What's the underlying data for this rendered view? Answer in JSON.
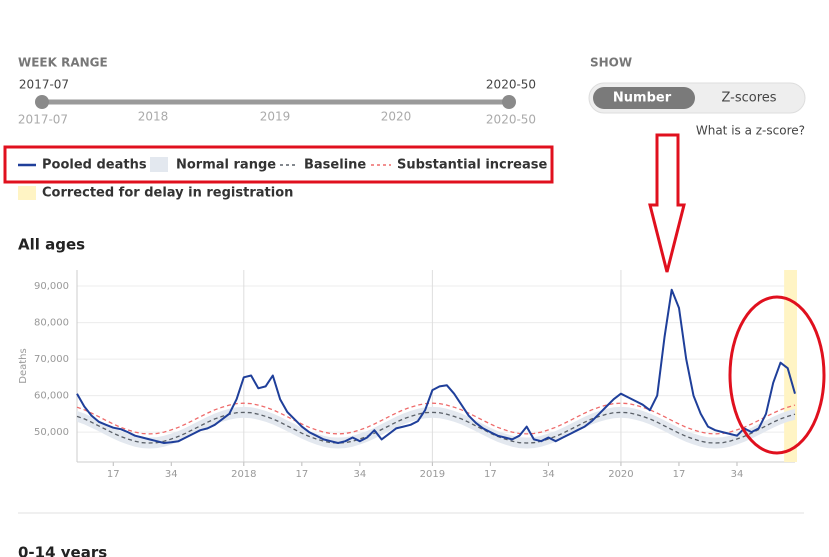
{
  "week_range": {
    "label": "WEEK RANGE",
    "start": "2017-07",
    "end": "2020-50",
    "ticks": [
      "2017-07",
      "2018",
      "2019",
      "2020",
      "2020-50"
    ]
  },
  "show": {
    "label": "SHOW",
    "options": [
      "Number",
      "Z-scores"
    ],
    "help_link": "What is a z-score?"
  },
  "section_title": "All ages",
  "next_section_title": "0-14 years",
  "chart_data": {
    "type": "line",
    "y_label": "Deaths",
    "corrected_label": "Corrected for delay in registration",
    "corrected_color": "#fff4c4",
    "ylim": [
      41800,
      94400
    ],
    "yticks": [
      {
        "value": 50000,
        "label": "50,000"
      },
      {
        "value": 60000,
        "label": "60,000"
      },
      {
        "value": 70000,
        "label": "70,000"
      },
      {
        "value": 80000,
        "label": "80,000"
      },
      {
        "value": 90000,
        "label": "90,000"
      }
    ],
    "grid": true,
    "categories": [
      null,
      null,
      null,
      null,
      null,
      "17",
      null,
      null,
      null,
      null,
      null,
      null,
      null,
      "34",
      null,
      null,
      null,
      null,
      null,
      null,
      null,
      null,
      null,
      "2018",
      null,
      null,
      null,
      null,
      null,
      null,
      null,
      "17",
      null,
      null,
      null,
      null,
      null,
      null,
      null,
      "34",
      null,
      null,
      null,
      null,
      null,
      null,
      null,
      null,
      null,
      "2019",
      null,
      null,
      null,
      null,
      null,
      null,
      null,
      "17",
      null,
      null,
      null,
      null,
      null,
      null,
      null,
      "34",
      null,
      null,
      null,
      null,
      null,
      null,
      null,
      null,
      null,
      "2020",
      null,
      null,
      null,
      null,
      null,
      null,
      null,
      "17",
      null,
      null,
      null,
      null,
      null,
      null,
      null,
      "34",
      null,
      null,
      null,
      null,
      null,
      null,
      null,
      null
    ],
    "band": {
      "name": "Normal range",
      "color": "#e3e8ef",
      "lower": [
        52800,
        52100,
        51200,
        50200,
        49200,
        48200,
        47300,
        46600,
        46000,
        45600,
        45500,
        45600,
        46000,
        46600,
        47300,
        48200,
        49200,
        50200,
        51200,
        52100,
        52800,
        53400,
        53800,
        53900,
        53800,
        53400,
        52800,
        52100,
        51200,
        50200,
        49200,
        48200,
        47300,
        46600,
        46000,
        45600,
        45500,
        45600,
        46000,
        46600,
        47300,
        48200,
        49200,
        50200,
        51200,
        52100,
        52800,
        53400,
        53800,
        53900,
        53800,
        53400,
        52800,
        52100,
        51200,
        50200,
        49200,
        48200,
        47300,
        46600,
        46000,
        45600,
        45500,
        45600,
        46000,
        46600,
        47300,
        48200,
        49200,
        50200,
        51200,
        52100,
        52800,
        53400,
        53800,
        53900,
        53800,
        53400,
        52800,
        52100,
        51200,
        50200,
        49200,
        48200,
        47300,
        46600,
        46000,
        45600,
        45500,
        45600,
        46000,
        46600,
        47300,
        48200,
        49200,
        50200,
        51200,
        52100,
        52800,
        53400
      ],
      "upper": [
        55800,
        55100,
        54200,
        53200,
        52200,
        51200,
        50300,
        49600,
        49000,
        48600,
        48500,
        48600,
        49000,
        49600,
        50300,
        51200,
        52200,
        53200,
        54200,
        55100,
        55800,
        56400,
        56800,
        56900,
        56800,
        56400,
        55800,
        55100,
        54200,
        53200,
        52200,
        51200,
        50300,
        49600,
        49000,
        48600,
        48500,
        48600,
        49000,
        49600,
        50300,
        51200,
        52200,
        53200,
        54200,
        55100,
        55800,
        56400,
        56800,
        56900,
        56800,
        56400,
        55800,
        55100,
        54200,
        53200,
        52200,
        51200,
        50300,
        49600,
        49000,
        48600,
        48500,
        48600,
        49000,
        49600,
        50300,
        51200,
        52200,
        53200,
        54200,
        55100,
        55800,
        56400,
        56800,
        56900,
        56800,
        56400,
        55800,
        55100,
        54200,
        53200,
        52200,
        51200,
        50300,
        49600,
        49000,
        48600,
        48500,
        48600,
        49000,
        49600,
        50300,
        51200,
        52200,
        53200,
        54200,
        55100,
        55800,
        56400
      ]
    },
    "series": [
      {
        "name": "Pooled deaths",
        "color": "#1f3f9a",
        "dashed": false,
        "values": [
          60500,
          57000,
          54500,
          52800,
          52000,
          51200,
          50800,
          50000,
          49000,
          48500,
          48000,
          47500,
          47000,
          47200,
          47500,
          48500,
          49500,
          50500,
          51000,
          52000,
          53500,
          55000,
          59000,
          65000,
          65500,
          62000,
          62500,
          65500,
          59000,
          55500,
          53500,
          51500,
          50000,
          49000,
          48000,
          47500,
          47000,
          47500,
          48500,
          47500,
          48500,
          50500,
          48000,
          49500,
          51000,
          51500,
          52000,
          53000,
          56000,
          61500,
          62500,
          62800,
          60500,
          57500,
          54500,
          52500,
          51000,
          50000,
          49000,
          48500,
          48000,
          49000,
          51500,
          48000,
          47500,
          48500,
          47500,
          48500,
          49500,
          50500,
          51500,
          53000,
          55000,
          57000,
          59000,
          60500,
          59500,
          58500,
          57500,
          56000,
          60000,
          76000,
          89000,
          84000,
          70000,
          60000,
          55000,
          51500,
          50500,
          50000,
          49500,
          49000,
          51000,
          50000,
          51000,
          55000,
          63500,
          69000,
          67500,
          60500
        ]
      },
      {
        "name": "Baseline",
        "color": "#5a6068",
        "dashed": true,
        "values": [
          54300,
          53600,
          52700,
          51700,
          50700,
          49700,
          48800,
          48100,
          47500,
          47100,
          47000,
          47100,
          47500,
          48100,
          48800,
          49700,
          50700,
          51700,
          52700,
          53600,
          54300,
          54900,
          55300,
          55400,
          55300,
          54900,
          54300,
          53600,
          52700,
          51700,
          50700,
          49700,
          48800,
          48100,
          47500,
          47100,
          47000,
          47100,
          47500,
          48100,
          48800,
          49700,
          50700,
          51700,
          52700,
          53600,
          54300,
          54900,
          55300,
          55400,
          55300,
          54900,
          54300,
          53600,
          52700,
          51700,
          50700,
          49700,
          48800,
          48100,
          47500,
          47100,
          47000,
          47100,
          47500,
          48100,
          48800,
          49700,
          50700,
          51700,
          52700,
          53600,
          54300,
          54900,
          55300,
          55400,
          55300,
          54900,
          54300,
          53600,
          52700,
          51700,
          50700,
          49700,
          48800,
          48100,
          47500,
          47100,
          47000,
          47100,
          47500,
          48100,
          48800,
          49700,
          50700,
          51700,
          52700,
          53600,
          54300,
          54900
        ]
      },
      {
        "name": "Substantial increase",
        "color": "#ee6b6b",
        "dashed": true,
        "values": [
          56800,
          56100,
          55200,
          54200,
          53200,
          52200,
          51300,
          50600,
          50000,
          49600,
          49500,
          49600,
          50000,
          50600,
          51300,
          52200,
          53200,
          54200,
          55200,
          56100,
          56800,
          57400,
          57800,
          57900,
          57800,
          57400,
          56800,
          56100,
          55200,
          54200,
          53200,
          52200,
          51300,
          50600,
          50000,
          49600,
          49500,
          49600,
          50000,
          50600,
          51300,
          52200,
          53200,
          54200,
          55200,
          56100,
          56800,
          57400,
          57800,
          57900,
          57800,
          57400,
          56800,
          56100,
          55200,
          54200,
          53200,
          52200,
          51300,
          50600,
          50000,
          49600,
          49500,
          49600,
          50000,
          50600,
          51300,
          52200,
          53200,
          54200,
          55200,
          56100,
          56800,
          57400,
          57800,
          57900,
          57800,
          57400,
          56800,
          56100,
          55200,
          54200,
          53200,
          52200,
          51300,
          50600,
          50000,
          49600,
          49500,
          49600,
          50000,
          50600,
          51300,
          52200,
          53200,
          54200,
          55200,
          56100,
          56800,
          57400
        ]
      }
    ]
  }
}
